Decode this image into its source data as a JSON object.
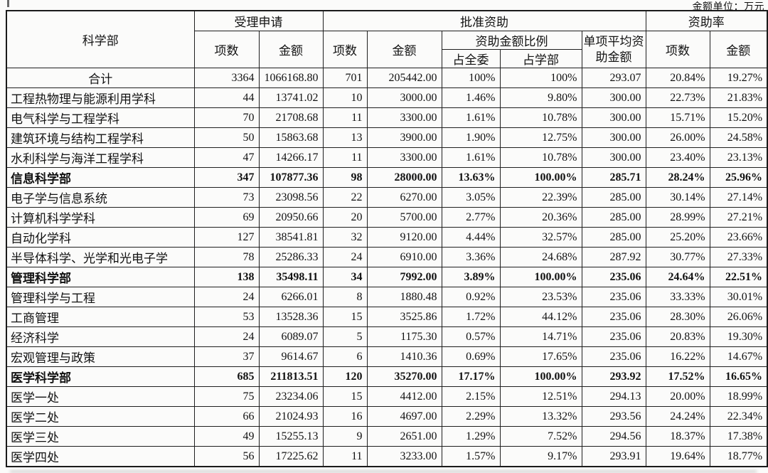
{
  "unit_label": "金额单位：万元",
  "header": {
    "dept": "科学部",
    "accepted": {
      "label": "受理申请",
      "cols": [
        "项数",
        "金额"
      ]
    },
    "approved": {
      "label": "批准资助",
      "count": "项数",
      "amount": "金额",
      "ratio": {
        "label": "资助金额比例",
        "committee": "占全委",
        "department": "占学部"
      },
      "avg": "单项平均资助金额"
    },
    "rate": {
      "label": "资助率",
      "cols": [
        "项数",
        "金额"
      ]
    }
  },
  "table": {
    "rows": [
      {
        "name": "合计",
        "bold": false,
        "name_align": "center",
        "values": [
          "3364",
          "1066168.80",
          "701",
          "205442.00",
          "100%",
          "100%",
          "293.07",
          "20.84%",
          "19.27%"
        ]
      },
      {
        "name": "工程热物理与能源利用学科",
        "bold": false,
        "name_align": "left",
        "values": [
          "44",
          "13741.02",
          "10",
          "3000.00",
          "1.46%",
          "9.80%",
          "300.00",
          "22.73%",
          "21.83%"
        ]
      },
      {
        "name": "电气科学与工程学科",
        "bold": false,
        "name_align": "left",
        "values": [
          "70",
          "21708.68",
          "11",
          "3300.00",
          "1.61%",
          "10.78%",
          "300.00",
          "15.71%",
          "15.20%"
        ]
      },
      {
        "name": "建筑环境与结构工程学科",
        "bold": false,
        "name_align": "left",
        "values": [
          "50",
          "15863.68",
          "13",
          "3900.00",
          "1.90%",
          "12.75%",
          "300.00",
          "26.00%",
          "24.58%"
        ]
      },
      {
        "name": "水利科学与海洋工程学科",
        "bold": false,
        "name_align": "left",
        "values": [
          "47",
          "14266.17",
          "11",
          "3300.00",
          "1.61%",
          "10.78%",
          "300.00",
          "23.40%",
          "23.13%"
        ]
      },
      {
        "name": "信息科学部",
        "bold": true,
        "name_align": "left",
        "values": [
          "347",
          "107877.36",
          "98",
          "28000.00",
          "13.63%",
          "100.00%",
          "285.71",
          "28.24%",
          "25.96%"
        ]
      },
      {
        "name": "电子学与信息系统",
        "bold": false,
        "name_align": "left",
        "values": [
          "73",
          "23098.56",
          "22",
          "6270.00",
          "3.05%",
          "22.39%",
          "285.00",
          "30.14%",
          "27.14%"
        ]
      },
      {
        "name": "计算机科学学科",
        "bold": false,
        "name_align": "left",
        "values": [
          "69",
          "20950.66",
          "20",
          "5700.00",
          "2.77%",
          "20.36%",
          "285.00",
          "28.99%",
          "27.21%"
        ]
      },
      {
        "name": "自动化学科",
        "bold": false,
        "name_align": "left",
        "values": [
          "127",
          "38541.81",
          "32",
          "9120.00",
          "4.44%",
          "32.57%",
          "285.00",
          "25.20%",
          "23.66%"
        ]
      },
      {
        "name": "半导体科学、光学和光电子学",
        "bold": false,
        "name_align": "left",
        "values": [
          "78",
          "25286.33",
          "24",
          "6910.00",
          "3.36%",
          "24.68%",
          "287.92",
          "30.77%",
          "27.33%"
        ]
      },
      {
        "name": "管理科学部",
        "bold": true,
        "name_align": "left",
        "values": [
          "138",
          "35498.11",
          "34",
          "7992.00",
          "3.89%",
          "100.00%",
          "235.06",
          "24.64%",
          "22.51%"
        ]
      },
      {
        "name": "管理科学与工程",
        "bold": false,
        "name_align": "left",
        "values": [
          "24",
          "6266.01",
          "8",
          "1880.48",
          "0.92%",
          "23.53%",
          "235.06",
          "33.33%",
          "30.01%"
        ]
      },
      {
        "name": "工商管理",
        "bold": false,
        "name_align": "left",
        "values": [
          "53",
          "13528.36",
          "15",
          "3525.86",
          "1.72%",
          "44.12%",
          "235.06",
          "28.30%",
          "26.06%"
        ]
      },
      {
        "name": "经济科学",
        "bold": false,
        "name_align": "left",
        "values": [
          "24",
          "6089.07",
          "5",
          "1175.30",
          "0.57%",
          "14.71%",
          "235.06",
          "20.83%",
          "19.30%"
        ]
      },
      {
        "name": "宏观管理与政策",
        "bold": false,
        "name_align": "left",
        "values": [
          "37",
          "9614.67",
          "6",
          "1410.36",
          "0.69%",
          "17.65%",
          "235.06",
          "16.22%",
          "14.67%"
        ]
      },
      {
        "name": "医学科学部",
        "bold": true,
        "name_align": "left",
        "values": [
          "685",
          "211813.51",
          "120",
          "35270.00",
          "17.17%",
          "100.00%",
          "293.92",
          "17.52%",
          "16.65%"
        ]
      },
      {
        "name": "医学一处",
        "bold": false,
        "name_align": "left",
        "values": [
          "75",
          "23234.06",
          "15",
          "4412.00",
          "2.15%",
          "12.51%",
          "294.13",
          "20.00%",
          "18.99%"
        ]
      },
      {
        "name": "医学二处",
        "bold": false,
        "name_align": "left",
        "values": [
          "66",
          "21024.93",
          "16",
          "4697.00",
          "2.29%",
          "13.32%",
          "293.56",
          "24.24%",
          "22.34%"
        ]
      },
      {
        "name": "医学三处",
        "bold": false,
        "name_align": "left",
        "values": [
          "49",
          "15255.13",
          "9",
          "2651.00",
          "1.29%",
          "7.52%",
          "294.56",
          "18.37%",
          "17.38%"
        ]
      },
      {
        "name": "医学四处",
        "bold": false,
        "name_align": "left",
        "values": [
          "56",
          "17225.62",
          "11",
          "3233.00",
          "1.57%",
          "9.17%",
          "293.91",
          "19.64%",
          "18.77%"
        ]
      }
    ]
  }
}
